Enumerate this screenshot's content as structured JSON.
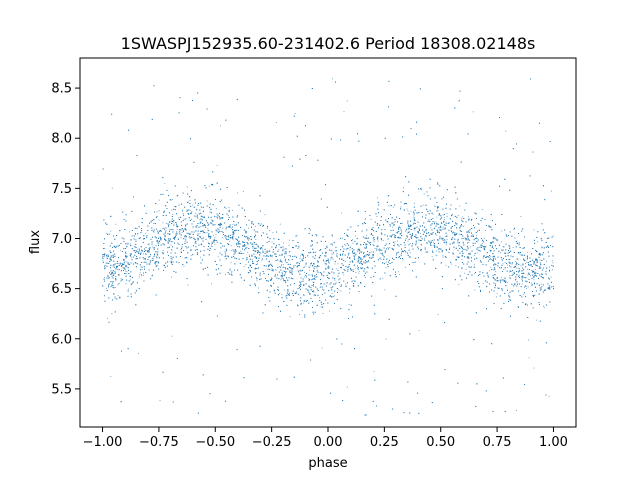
{
  "chart_data": {
    "type": "scatter",
    "title": "1SWASPJ152935.60-231402.6 Period 18308.02148s",
    "xlabel": "phase",
    "ylabel": "flux",
    "xlim": [
      -1.1,
      1.1
    ],
    "ylim": [
      5.12,
      8.8
    ],
    "xticks": [
      -1.0,
      -0.75,
      -0.5,
      -0.25,
      0.0,
      0.25,
      0.5,
      0.75,
      1.0
    ],
    "xtick_labels": [
      "−1.00",
      "−0.75",
      "−0.50",
      "−0.25",
      "0.00",
      "0.25",
      "0.50",
      "0.75",
      "1.00"
    ],
    "yticks": [
      5.5,
      6.0,
      6.5,
      7.0,
      7.5,
      8.0,
      8.5
    ],
    "ytick_labels": [
      "5.5",
      "6.0",
      "6.5",
      "7.0",
      "7.5",
      "8.0",
      "8.5"
    ],
    "grid": false,
    "marker_color": "#1f77b4",
    "series_shape": {
      "phase_range": [
        -1.0,
        1.0
      ],
      "mean_flux": 6.87,
      "amplitude": 0.22,
      "maxima_phase": [
        -0.58,
        0.42
      ],
      "minima_phase": [
        -0.08,
        0.92
      ],
      "scatter_sd": 0.18,
      "outlier_range": [
        5.2,
        8.6
      ]
    },
    "curve_samples": {
      "x": [
        -1.0,
        -0.75,
        -0.5,
        -0.25,
        0.0,
        0.25,
        0.5,
        0.75,
        1.0
      ],
      "y": [
        6.74,
        7.0,
        7.06,
        6.82,
        6.68,
        6.95,
        7.06,
        6.82,
        6.7
      ]
    }
  }
}
